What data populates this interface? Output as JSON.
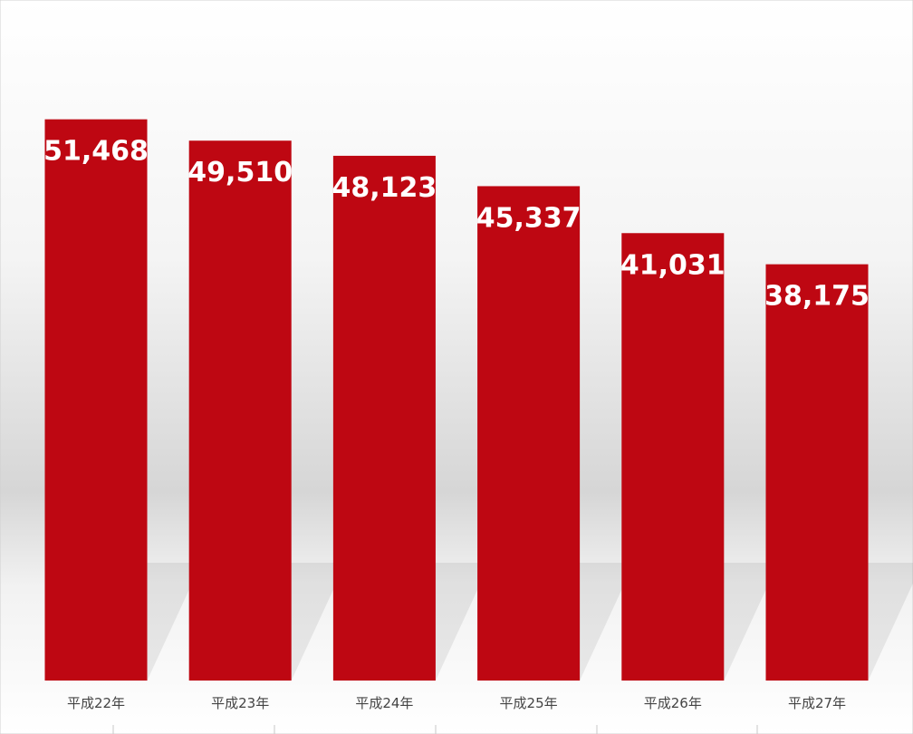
{
  "chart_data": {
    "type": "bar",
    "categories": [
      "平成22年",
      "平成23年",
      "平成24年",
      "平成25年",
      "平成26年",
      "平成27年"
    ],
    "values": [
      51468,
      49510,
      48123,
      45337,
      41031,
      38175
    ],
    "value_labels": [
      "51,468",
      "49,510",
      "48,123",
      "45,337",
      "41,031",
      "38,175"
    ],
    "color": "#be0712",
    "ylim": [
      0,
      60000
    ]
  }
}
